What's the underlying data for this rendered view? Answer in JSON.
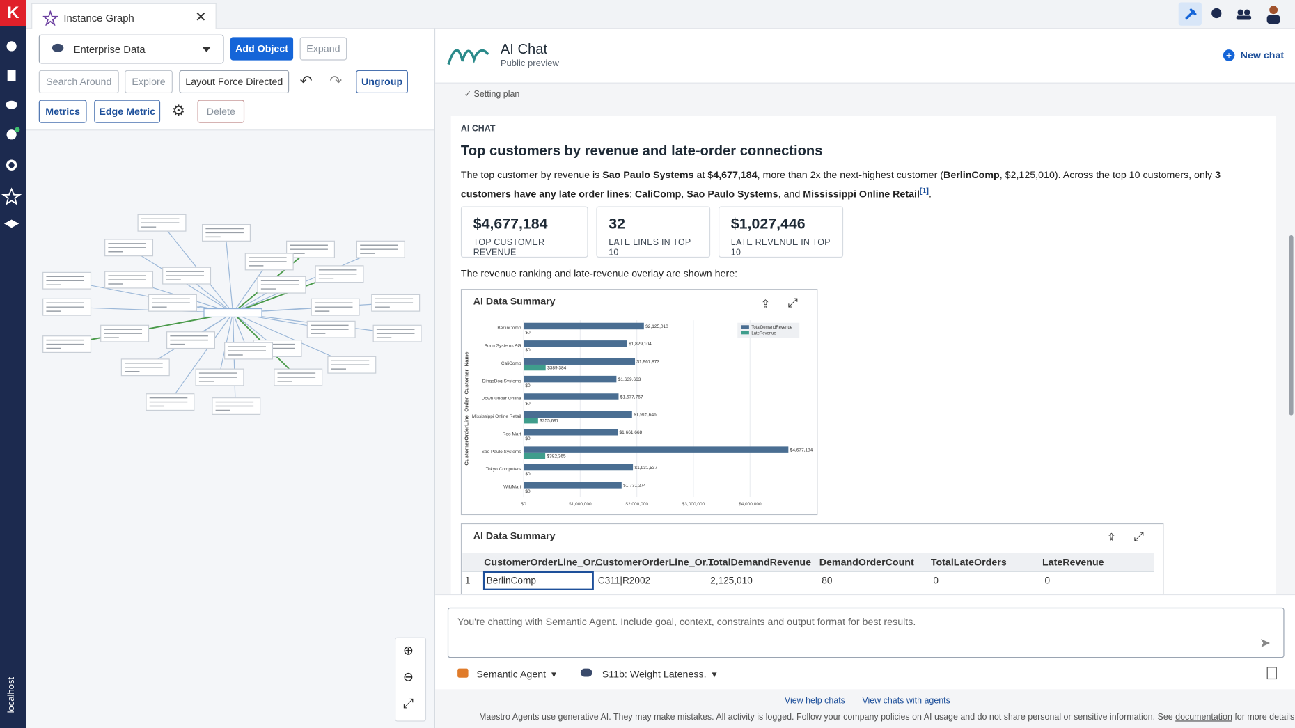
{
  "tab": {
    "title": "Instance Graph"
  },
  "sidebar": {
    "host": "localhost"
  },
  "toolbar": {
    "dataset": "Enterprise Data",
    "buttons": [
      "Add Object",
      "Expand",
      "Search Around",
      "Explore",
      "Layout Force Directed",
      "Ungroup",
      "Metrics",
      "Edge Metric",
      "Delete"
    ]
  },
  "chat_header": {
    "title": "AI Chat",
    "subtitle": "Public preview",
    "new_chat": "New chat"
  },
  "status": "Setting plan",
  "message": {
    "label": "AI CHAT",
    "heading": "Top customers by revenue and late-order connections",
    "parts": [
      "The top customer by revenue is ",
      "Sao Paulo Systems",
      " at ",
      "$4,677,184",
      ", more than 2x the next-highest customer (",
      "BerlinComp",
      ", $2,125,010). Across the top 10 customers, only ",
      "3 customers have any late order lines",
      ": ",
      "CaliComp",
      ", ",
      "Sao Paulo Systems",
      ", and ",
      "Mississippi Online Retail",
      "[1]",
      "."
    ],
    "kpis": [
      {
        "value": "$4,677,184",
        "label": "TOP CUSTOMER REVENUE"
      },
      {
        "value": "32",
        "label": "LATE LINES IN TOP 10"
      },
      {
        "value": "$1,027,446",
        "label": "LATE REVENUE IN TOP 10"
      }
    ],
    "intro": "The revenue ranking and late-revenue overlay are shown here:"
  },
  "chart_data": {
    "type": "hbar",
    "title": "AI Data Summary",
    "y_label": "CustomerOrderLine_Order_Customer_Name",
    "categories": [
      "BerlinComp",
      "Bonn Systems AG",
      "CaliComp",
      "DingoDog Systems",
      "Down Under Online",
      "Mississippi Online Retail",
      "Roo Mart",
      "Sao Paulo Systems",
      "Tokyo Computers",
      "WikiMart"
    ],
    "series": [
      {
        "name": "TotalDemandRevenue",
        "color": "#4a6e92",
        "values": [
          2125010,
          1829104,
          1967873,
          1639663,
          1677767,
          1915646,
          1661668,
          4677184,
          1931537,
          1731274
        ],
        "value_labels": [
          "$2,125,010",
          "$1,829,104",
          "$1,967,873",
          "$1,639,663",
          "$1,677,767",
          "$1,915,646",
          "$1,661,668",
          "$4,677,184",
          "$1,931,537",
          "$1,731,274"
        ]
      },
      {
        "name": "LateRevenue",
        "color": "#3f9d8c",
        "values": [
          0,
          0,
          389384,
          0,
          0,
          255697,
          0,
          382365,
          0,
          0
        ],
        "value_labels": [
          "$0",
          "$0",
          "$389,384",
          "$0",
          "$0",
          "$255,697",
          "$0",
          "$382,365",
          "$0",
          "$0"
        ]
      }
    ],
    "xlim": [
      0,
      4800000
    ],
    "xticks": [
      {
        "value": 0,
        "label": "$0"
      },
      {
        "value": 1000000,
        "label": "$1,000,000"
      },
      {
        "value": 2000000,
        "label": "$2,000,000"
      },
      {
        "value": 3000000,
        "label": "$3,000,000"
      },
      {
        "value": 4000000,
        "label": "$4,000,000"
      }
    ],
    "grid": true,
    "legend": "top-right"
  },
  "table": {
    "title": "AI Data Summary",
    "columns": [
      "CustomerOrderLine_Or...",
      "CustomerOrderLine_Or...",
      "TotalDemandRevenue",
      "DemandOrderCount",
      "TotalLateOrders",
      "LateRevenue"
    ],
    "rows": [
      [
        "1",
        "BerlinComp",
        "C311|R2002",
        "2,125,010",
        "80",
        "0",
        "0"
      ]
    ]
  },
  "composer": {
    "placeholder": "You're chatting with Semantic Agent. Include goal, context, constraints and output format for best results.",
    "agent": "Semantic Agent",
    "context": "S11b: Weight Lateness."
  },
  "links": [
    "View help chats",
    "View chats with agents"
  ],
  "footer": [
    "Maestro Agents use generative AI. They may make mistakes. All activity is logged. Follow your company policies on AI usage and do not share personal or sensitive information. See ",
    "documentation",
    " for more details."
  ]
}
